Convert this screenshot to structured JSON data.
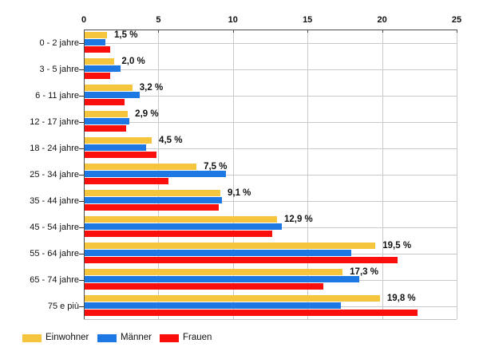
{
  "chart_data": {
    "type": "bar",
    "orientation": "horizontal",
    "title": "",
    "xlabel": "",
    "ylabel": "",
    "xlim": [
      0,
      25
    ],
    "x_ticks": [
      "0",
      "5",
      "10",
      "15",
      "20",
      "25"
    ],
    "grid": true,
    "legend_position": "bottom-left",
    "categories": [
      "0 - 2 jahre",
      "3 - 5 jahre",
      "6 - 11 jahre",
      "12 - 17 jahre",
      "18 - 24 jahre",
      "25 - 34 jahre",
      "35 - 44 jahre",
      "45 - 54 jahre",
      "55 - 64 jahre",
      "65 - 74 jahre",
      "75 e più"
    ],
    "series": [
      {
        "name": "Einwohner",
        "color": "#F5C53D",
        "values": [
          1.5,
          2.0,
          3.2,
          2.9,
          4.5,
          7.5,
          9.1,
          12.9,
          19.5,
          17.3,
          19.8
        ]
      },
      {
        "name": "Männer",
        "color": "#1E78E3",
        "values": [
          1.4,
          2.4,
          3.7,
          3.0,
          4.1,
          9.5,
          9.2,
          13.2,
          17.9,
          18.4,
          17.2
        ]
      },
      {
        "name": "Frauen",
        "color": "#FB0F0C",
        "values": [
          1.7,
          1.7,
          2.7,
          2.8,
          4.8,
          5.6,
          9.0,
          12.6,
          21.0,
          16.0,
          22.3
        ]
      }
    ],
    "value_labels": [
      "1,5 %",
      "2,0 %",
      "3,2 %",
      "2,9 %",
      "4,5 %",
      "7,5 %",
      "9,1 %",
      "12,9 %",
      "19,5 %",
      "17,3 %",
      "19,8 %"
    ]
  },
  "colors": {
    "grid": "#c9c9c9",
    "axis": "#4d4d4d",
    "text": "#111111",
    "background": "#ffffff"
  }
}
